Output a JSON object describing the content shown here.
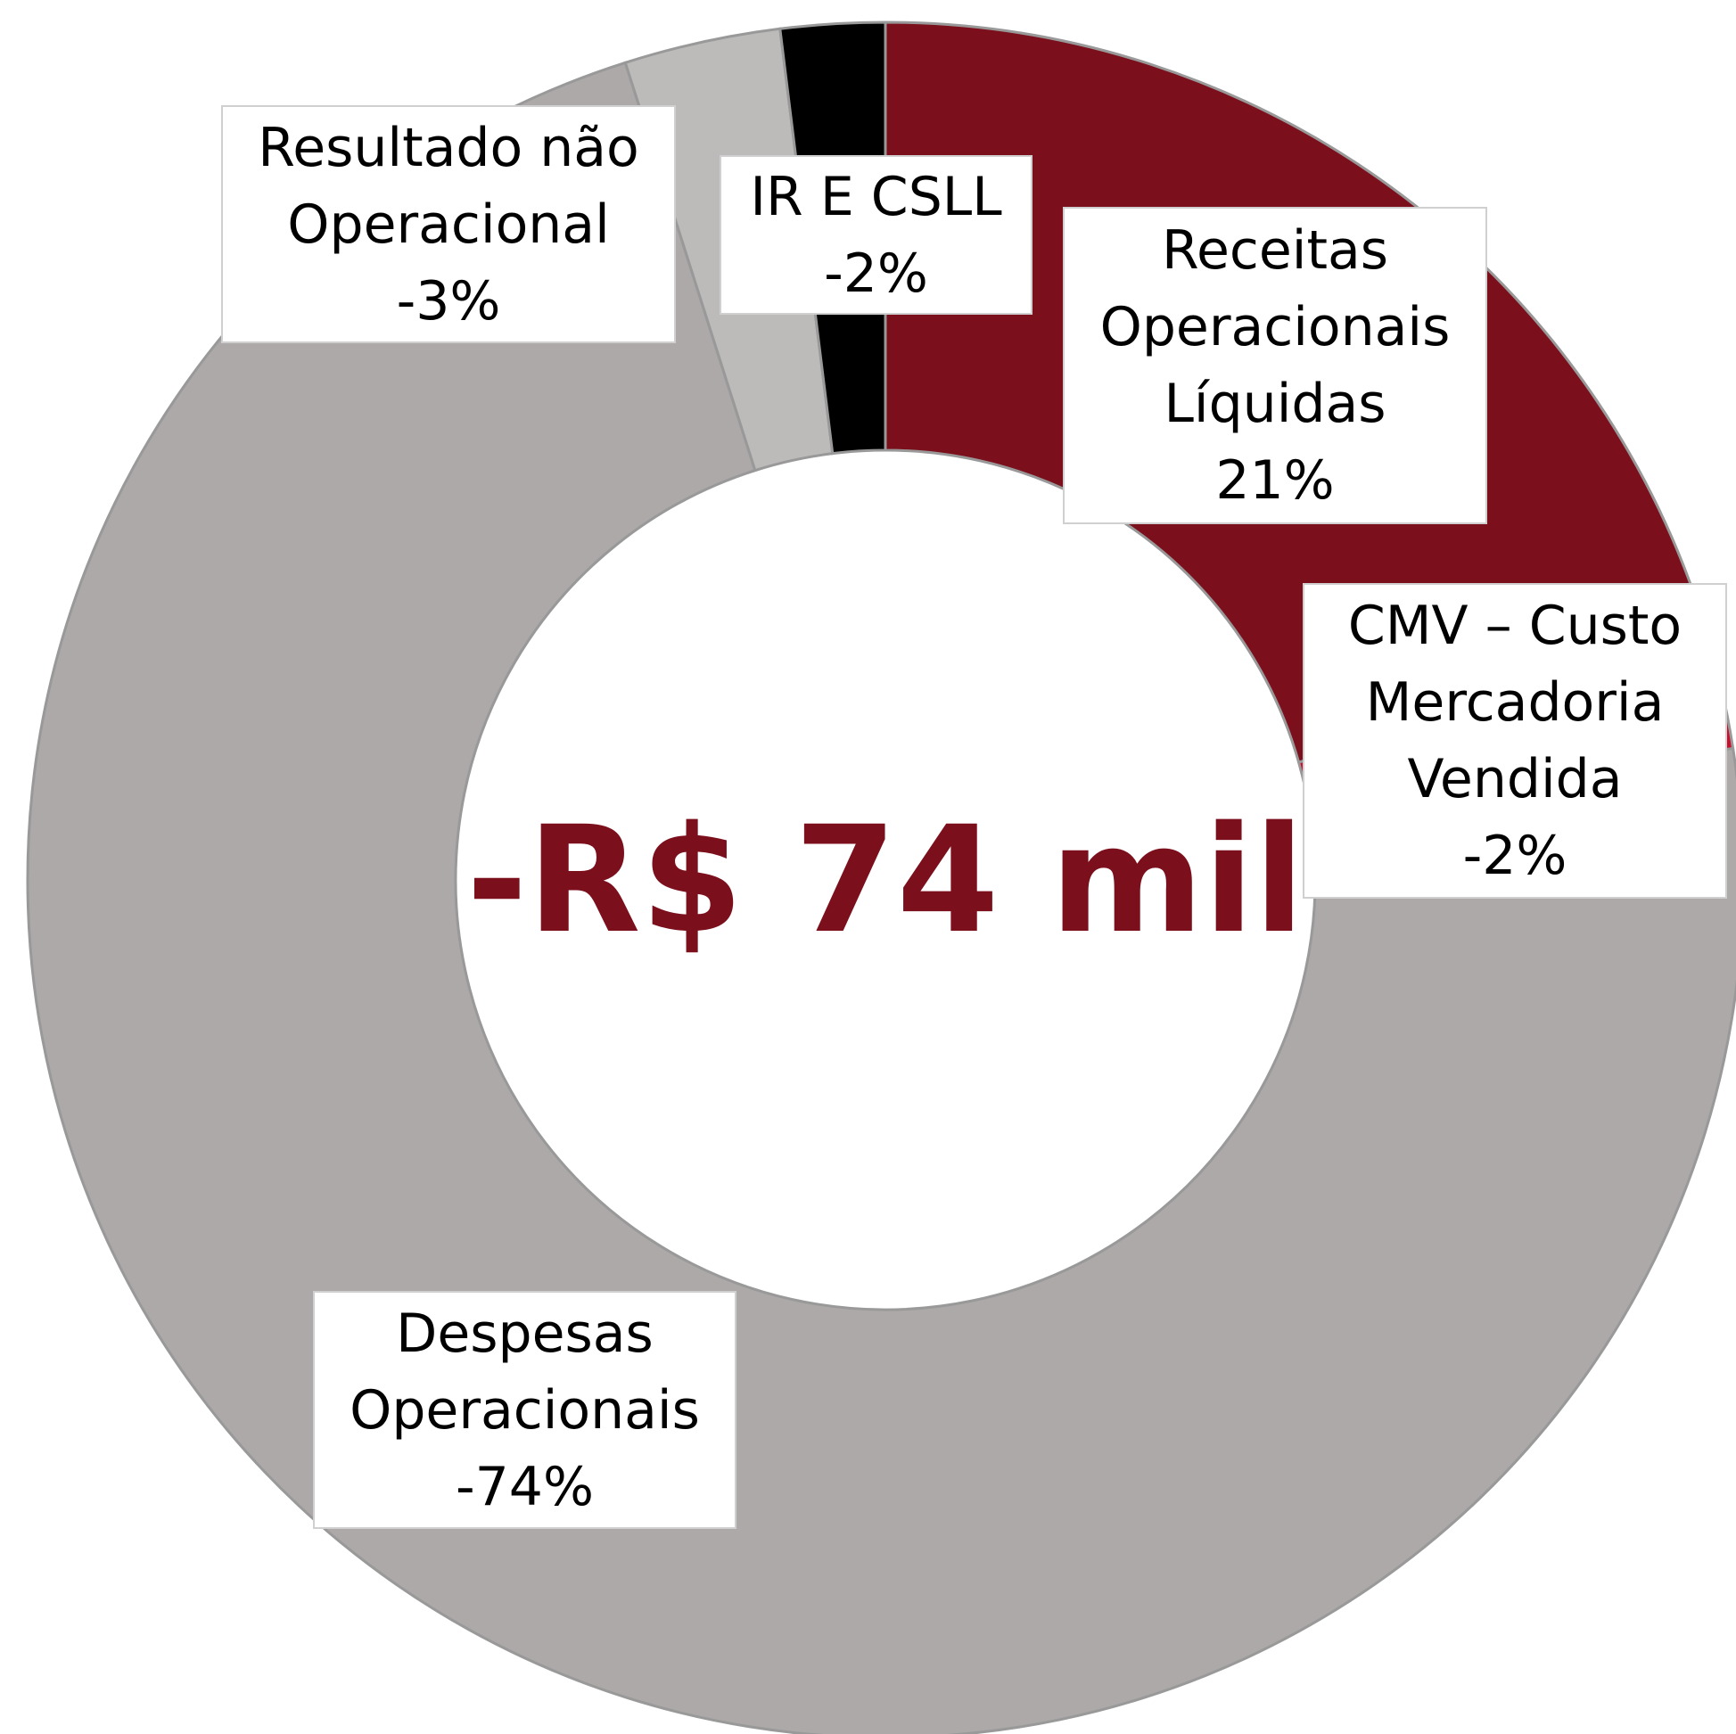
{
  "chart_data": {
    "type": "donut",
    "center_label": "-R$ 74 mil",
    "categories": [
      "Receitas Operacionais Líquidas",
      "CMV – Custo Mercadoria Vendida",
      "Despesas Operacionais",
      "Resultado não Operacional",
      "IR E CSLL"
    ],
    "values": [
      21,
      -2,
      -74,
      -3,
      -2
    ],
    "value_labels": [
      "21%",
      "-2%",
      "-74%",
      "-3%",
      "-2%"
    ],
    "colors": [
      "#7b0f1c",
      "#c8102e",
      "#aca9a8",
      "#bdbbba",
      "#000000"
    ]
  }
}
